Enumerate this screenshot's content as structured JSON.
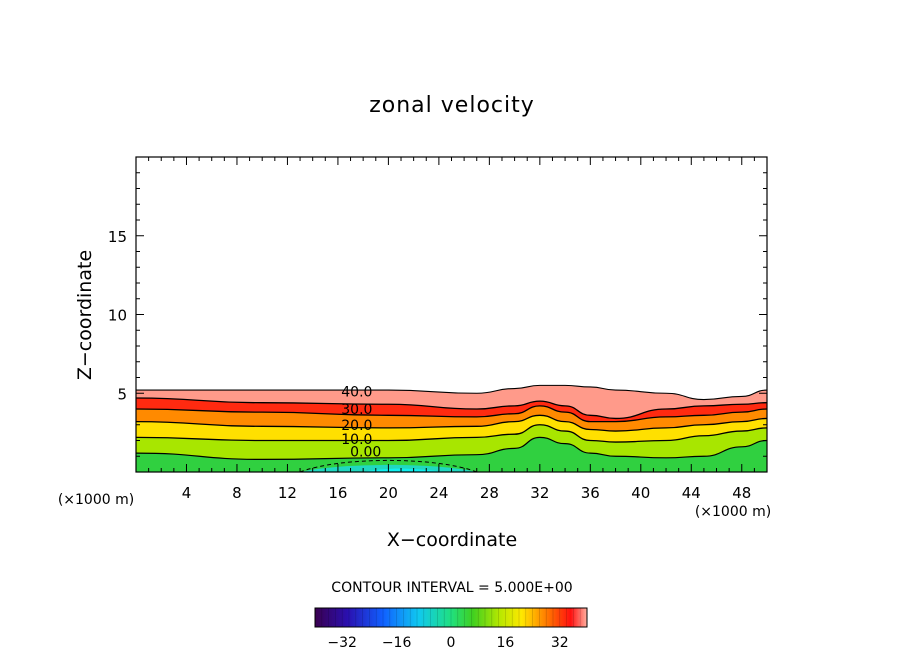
{
  "chart_data": {
    "type": "heatmap",
    "title": "zonal velocity",
    "xlabel": "X−coordinate",
    "ylabel": "Z−coordinate",
    "x_unit_left": "(×1000 m)",
    "x_unit_right": "(×1000 m)",
    "xlim": [
      0,
      50
    ],
    "ylim": [
      0,
      20
    ],
    "x_ticks": [
      4,
      8,
      12,
      16,
      20,
      24,
      28,
      32,
      36,
      40,
      44,
      48
    ],
    "y_ticks": [
      5,
      10,
      15
    ],
    "x_tick_labels": [
      "4",
      "8",
      "12",
      "16",
      "20",
      "24",
      "28",
      "32",
      "36",
      "40",
      "44",
      "48"
    ],
    "y_tick_labels": [
      "5",
      "10",
      "15"
    ],
    "contour_interval_text": "CONTOUR INTERVAL = 5.000E+00",
    "contour_interval": 5.0,
    "contour_labels": [
      {
        "text": "40.0",
        "x": 17.5,
        "z": 5.1
      },
      {
        "text": "30.0",
        "x": 17.5,
        "z": 4.0
      },
      {
        "text": "20.0",
        "x": 17.5,
        "z": 3.0
      },
      {
        "text": "10.0",
        "x": 17.5,
        "z": 2.1
      },
      {
        "text": "0.00",
        "x": 18.2,
        "z": 1.3
      }
    ],
    "colorbar": {
      "min": -40,
      "max": 40,
      "ticks": [
        -32,
        -16,
        0,
        16,
        32
      ],
      "tick_labels": [
        "−32",
        "−16",
        "0",
        "16",
        "32"
      ]
    },
    "field_profiles": {
      "x": [
        0,
        10,
        20,
        27,
        30,
        32,
        34,
        36,
        38,
        42,
        45,
        48,
        50
      ],
      "top_z": [
        5.2,
        5.2,
        5.2,
        5.0,
        5.3,
        5.5,
        5.5,
        5.4,
        5.2,
        5.0,
        4.6,
        4.8,
        5.2
      ],
      "layer_40_z": [
        4.7,
        4.4,
        4.3,
        4.0,
        4.2,
        4.5,
        4.2,
        3.6,
        3.4,
        4.0,
        4.2,
        4.3,
        4.4
      ],
      "layer_30_z": [
        4.0,
        3.8,
        3.6,
        3.5,
        3.7,
        4.2,
        3.8,
        3.2,
        3.2,
        3.5,
        3.6,
        3.8,
        4.0
      ],
      "layer_20_z": [
        3.2,
        2.9,
        2.8,
        2.9,
        3.2,
        3.6,
        3.2,
        2.7,
        2.6,
        2.8,
        3.0,
        3.2,
        3.4
      ],
      "layer_10_z": [
        2.2,
        2.0,
        2.0,
        2.2,
        2.4,
        3.0,
        2.6,
        2.0,
        1.9,
        2.0,
        2.3,
        2.6,
        2.8
      ],
      "layer_0_z": [
        1.2,
        0.8,
        0.9,
        1.1,
        1.5,
        2.2,
        1.8,
        1.2,
        1.0,
        0.9,
        1.0,
        1.6,
        2.0
      ],
      "neg_region_x": [
        13,
        27
      ],
      "neg_region_min_z": 0.0,
      "neg_region_peak_z": 0.6
    }
  }
}
